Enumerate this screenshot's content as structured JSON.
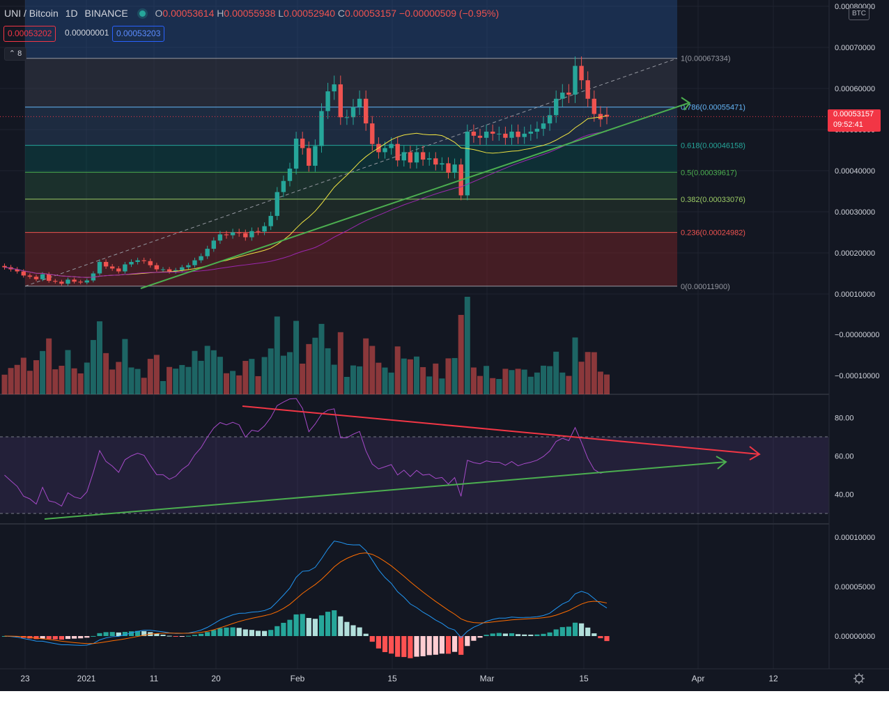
{
  "header": {
    "symbol": "UNI / Bitcoin",
    "interval": "1D",
    "exchange": "BINANCE",
    "o_label": "O",
    "open": "0.00053614",
    "h_label": "H",
    "high": "0.00055938",
    "l_label": "L",
    "low": "0.00052940",
    "c_label": "C",
    "close": "0.00053157",
    "change": "−0.00000509 (−0.95%)"
  },
  "quote": {
    "bid": "0.00053202",
    "spread": "0.00000001",
    "ask": "0.00053203"
  },
  "collapse_count": "8",
  "axis_currency": "BTC",
  "current_price": {
    "value": "0.00053157",
    "countdown": "09:52:41"
  },
  "colors": {
    "background": "#131722",
    "up": "#26a69a",
    "down": "#ef5350",
    "ma_fast": "#f0e442",
    "ma_slow": "#9c27b0",
    "rsi": "#a64ac9",
    "macd": "#2196f3",
    "signal": "#ff6d00",
    "trend_up": "#4caf50",
    "trend_down": "#f23645"
  },
  "chart_data": [
    {
      "type": "candlestick",
      "panel": "price",
      "y_ticks": [
        "0.00080000",
        "0.00070000",
        "0.00060000",
        "0.00050000",
        "0.00040000",
        "0.00030000",
        "0.00020000",
        "0.00010000"
      ],
      "x_ticks": [
        "23",
        "2021",
        "11",
        "20",
        "Feb",
        "15",
        "Mar",
        "15",
        "Apr",
        "12"
      ],
      "fibonacci": [
        {
          "level": "1",
          "price": "0.00067334",
          "label": "1(0.00067334)"
        },
        {
          "level": "0.786",
          "price": "0.00055471",
          "label": "0.786(0.00055471)"
        },
        {
          "level": "0.618",
          "price": "0.00046158",
          "label": "0.618(0.00046158)"
        },
        {
          "level": "0.5",
          "price": "0.00039617",
          "label": "0.5(0.00039617)"
        },
        {
          "level": "0.382",
          "price": "0.00033076",
          "label": "0.382(0.00033076)"
        },
        {
          "level": "0.236",
          "price": "0.00024982",
          "label": "0.236(0.00024982)"
        },
        {
          "level": "0",
          "price": "0.00011900",
          "label": "0(0.00011900)"
        }
      ],
      "closes": [
        0.000165,
        0.00016,
        0.000155,
        0.000145,
        0.000142,
        0.000136,
        0.000148,
        0.000132,
        0.00013,
        0.000125,
        0.000135,
        0.00013,
        0.000128,
        0.000133,
        0.00015,
        0.000178,
        0.000167,
        0.000162,
        0.000155,
        0.000172,
        0.000178,
        0.000182,
        0.00018,
        0.00017,
        0.00016,
        0.00016,
        0.000155,
        0.000158,
        0.000165,
        0.00017,
        0.000182,
        0.000192,
        0.00021,
        0.00023,
        0.000245,
        0.000243,
        0.00025,
        0.000248,
        0.000238,
        0.000253,
        0.000252,
        0.000265,
        0.00029,
        0.000348,
        0.000375,
        0.000405,
        0.000478,
        0.000455,
        0.000412,
        0.00046,
        0.000545,
        0.000593,
        0.00061,
        0.00053,
        0.00053,
        0.000555,
        0.000575,
        0.000515,
        0.000465,
        0.000445,
        0.000455,
        0.000465,
        0.000425,
        0.000445,
        0.00042,
        0.000445,
        0.000427,
        0.00043,
        0.000415,
        0.000418,
        0.000395,
        0.000415,
        0.00034,
        0.000495,
        0.000485,
        0.00048,
        0.000495,
        0.00049,
        0.00049,
        0.00048,
        0.000495,
        0.000482,
        0.00049,
        0.000495,
        0.000502,
        0.000515,
        0.000535,
        0.000575,
        0.00059,
        0.000585,
        0.000655,
        0.00062,
        0.000575,
        0.000538,
        0.000525,
        0.00053157
      ],
      "ma_fast": "20",
      "ma_slow": "50"
    },
    {
      "type": "bar",
      "panel": "volume",
      "y_ticks": [
        "−0.00000000",
        "−0.00010000"
      ]
    },
    {
      "type": "line",
      "panel": "rsi",
      "y_ticks": [
        "80.00",
        "60.00",
        "40.00"
      ],
      "bands": [
        70,
        30
      ]
    },
    {
      "type": "line",
      "panel": "macd",
      "y_ticks": [
        "0.00010000",
        "0.00005000",
        "0.00000000"
      ]
    }
  ]
}
